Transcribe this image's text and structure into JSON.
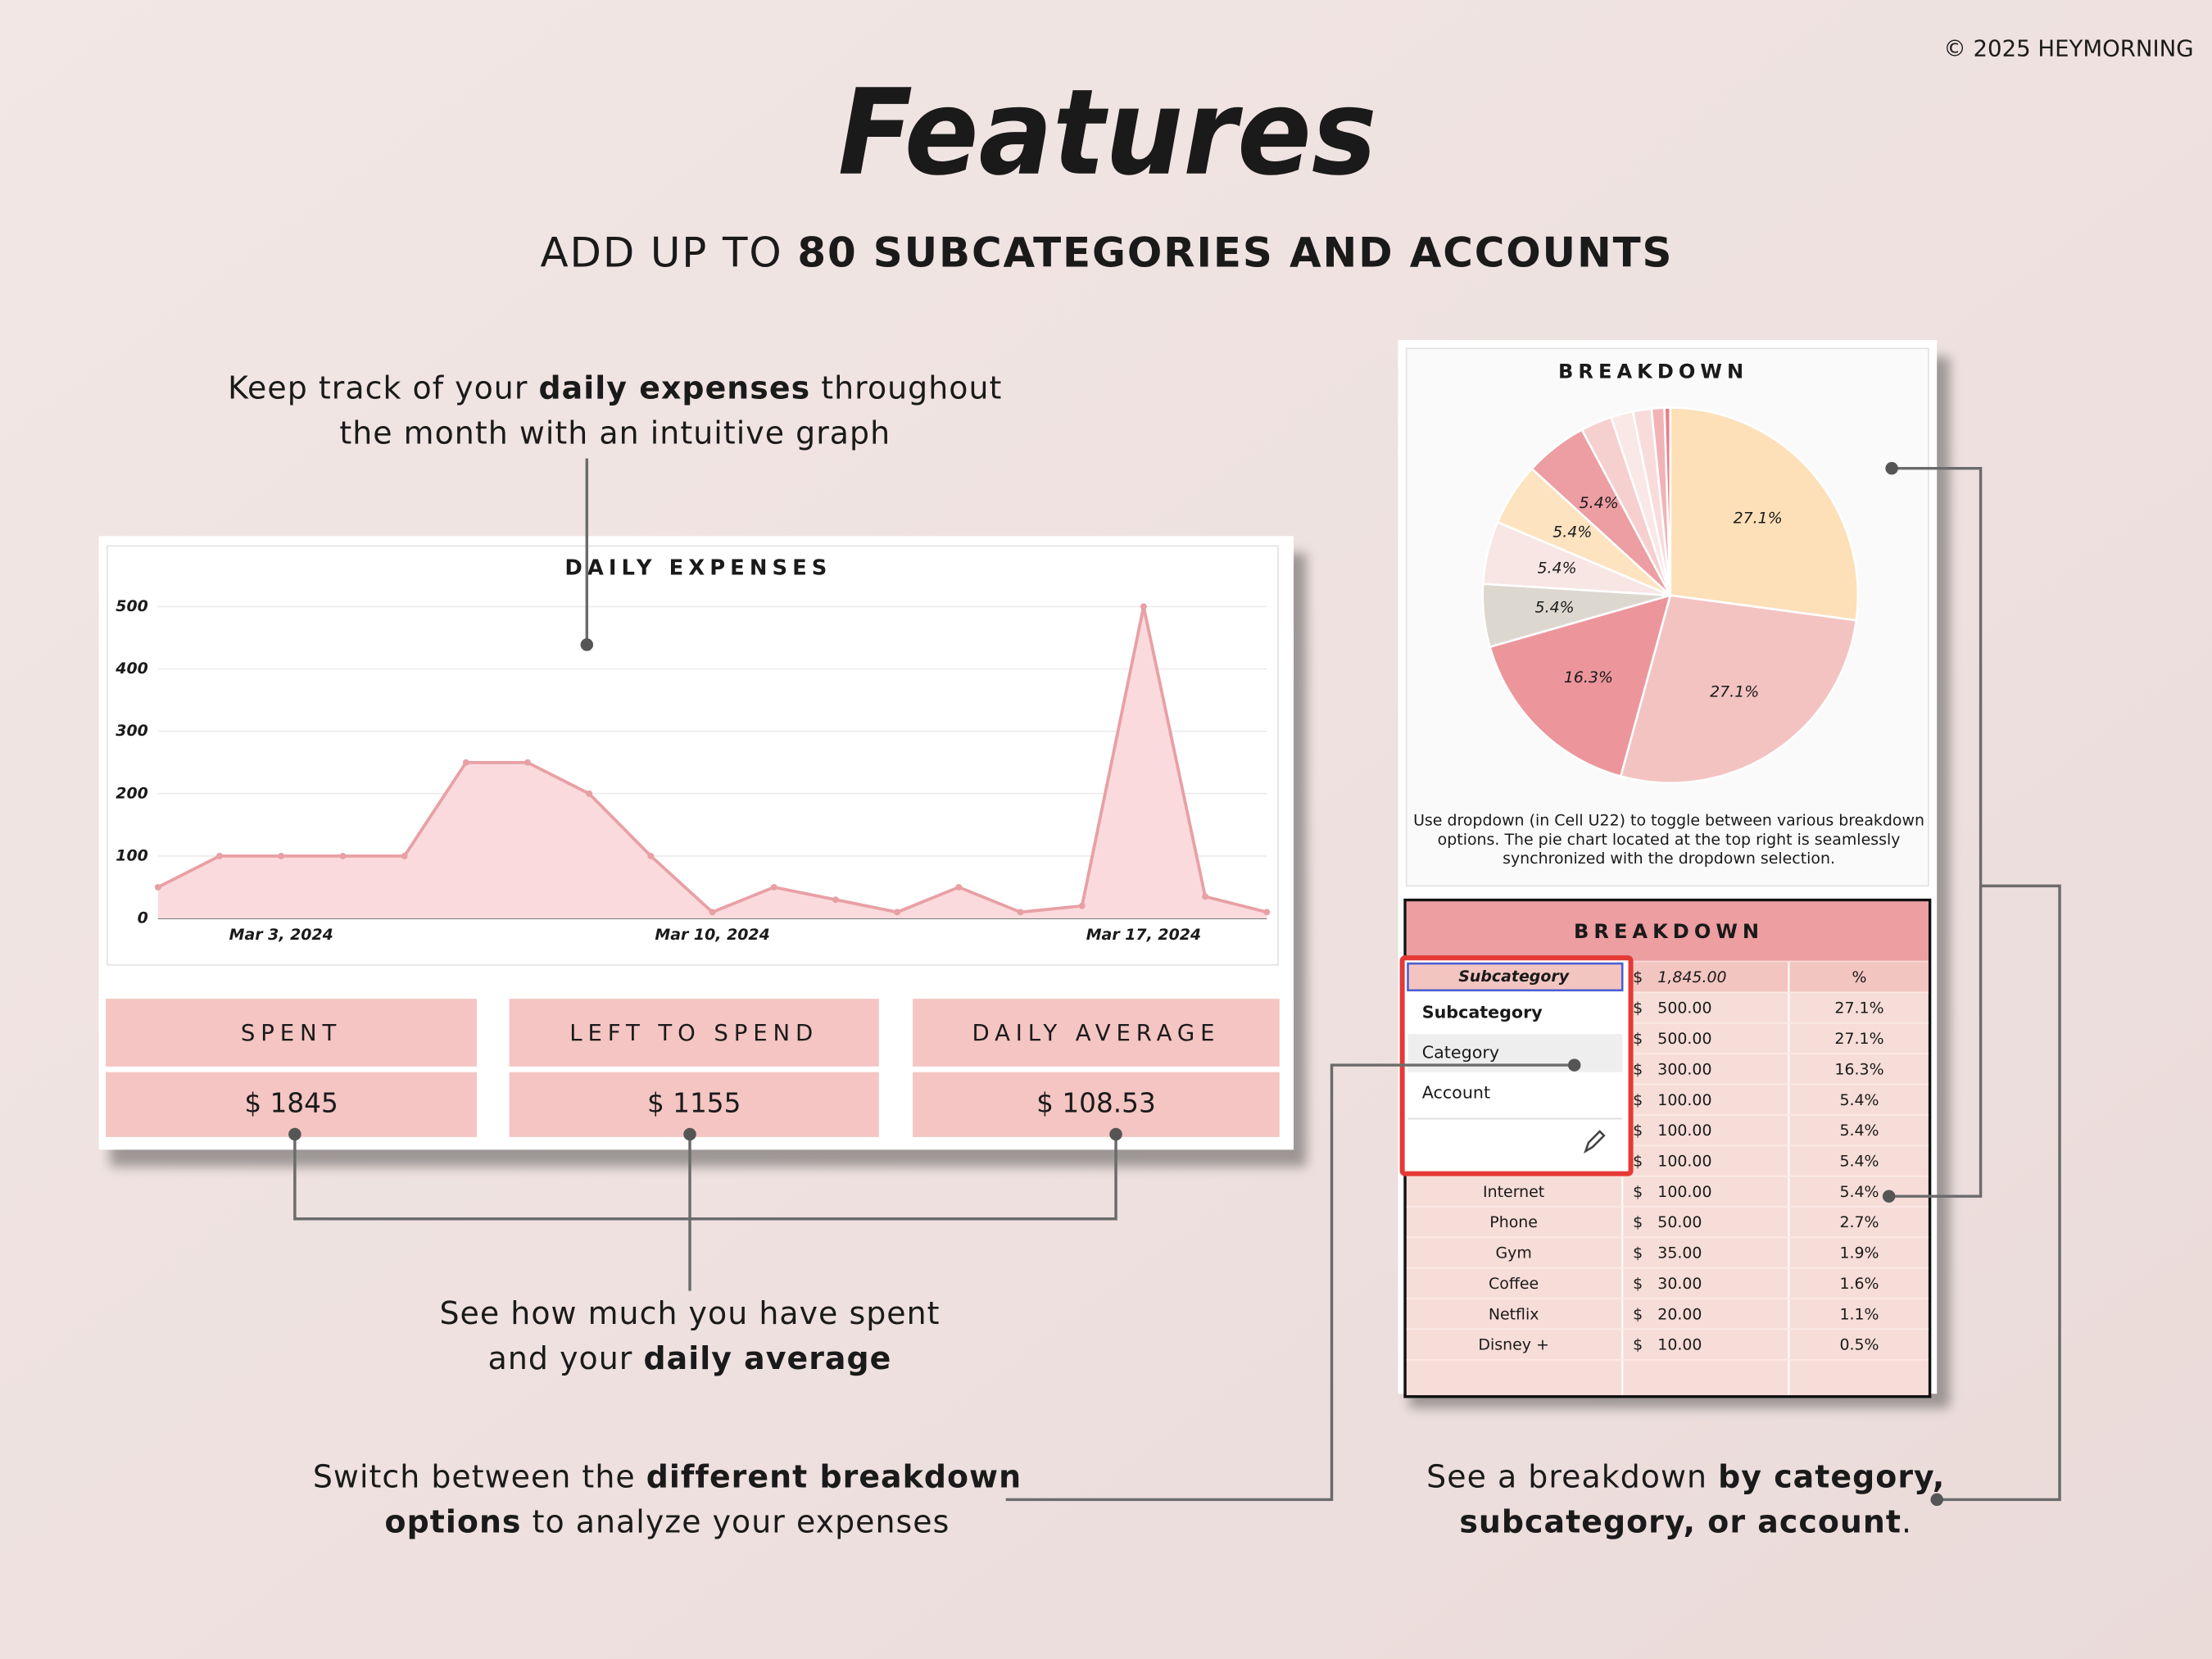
{
  "copyright": "© 2025 HEYMORNING",
  "header": {
    "title": "Features",
    "subtitle": [
      "ADD UP TO ",
      "80 SUBCATEGORIES AND ACCOUNTS"
    ]
  },
  "annotations": [
    {
      "lines": [
        [
          "Keep track of your ",
          "daily expenses",
          " throughout"
        ],
        [
          "the month with an intuitive graph"
        ]
      ]
    },
    {
      "lines": [
        [
          "See how much you have spent"
        ],
        [
          "and your ",
          "daily average"
        ]
      ]
    },
    {
      "lines": [
        [
          "Switch between the ",
          "different breakdown"
        ],
        [
          "options",
          " to analyze your expenses"
        ]
      ]
    },
    {
      "lines": [
        [
          "See a breakdown ",
          "by category,"
        ],
        [
          "subcategory, or account",
          "."
        ]
      ]
    }
  ],
  "chart_data": [
    {
      "type": "line",
      "title": "DAILY EXPENSES",
      "categories": [
        null,
        null,
        "Mar 3, 2024",
        null,
        null,
        null,
        null,
        null,
        null,
        "Mar 10, 2024",
        null,
        null,
        null,
        null,
        null,
        null,
        "Mar 17, 2024",
        null,
        null
      ],
      "values": [
        50,
        100,
        100,
        100,
        100,
        250,
        250,
        200,
        100,
        10,
        50,
        30,
        10,
        50,
        10,
        20,
        500,
        35,
        10
      ],
      "color": "#e8a0a5",
      "fill": "#fadadd",
      "ylim": [
        0,
        500
      ],
      "yticks": [
        0,
        100,
        200,
        300,
        400,
        500
      ],
      "grid": true
    },
    {
      "type": "pie",
      "title": "BREAKDOWN",
      "values": [
        27.1,
        27.1,
        16.3,
        5.4,
        5.4,
        5.4,
        5.4,
        2.7,
        1.9,
        1.6,
        1.1,
        0.5
      ],
      "value_labels": [
        "27.1%",
        "27.1%",
        "16.3%",
        "5.4%",
        "5.4%",
        "5.4%",
        "5.4%",
        null,
        null,
        null,
        null,
        null
      ],
      "colors": [
        "#fde0b8",
        "#f3c3c2",
        "#ec969c",
        "#dcd8cf",
        "#f8e6e4",
        "#fde3c0",
        "#ec9ea3",
        "#f6cfcf",
        "#fae8e6",
        "#f8dcdc",
        "#f2b3b6",
        "#e77f88"
      ]
    }
  ],
  "pie_note": [
    "Use dropdown (in Cell U22) to toggle between various breakdown",
    "options. The pie chart located at the top right is seamlessly",
    "synchronized with the dropdown selection."
  ],
  "summary": [
    {
      "label": "SPENT",
      "value": "$ 1845"
    },
    {
      "label": "LEFT TO SPEND",
      "value": "$ 1155"
    },
    {
      "label": "DAILY AVERAGE",
      "value": "$ 108.53"
    }
  ],
  "breakdown_table": {
    "title": "BREAKDOWN",
    "header": {
      "selected": "Subcategory",
      "currency": "$",
      "total": "1,845.00",
      "pct": "%"
    },
    "dropdown": [
      "Subcategory",
      "Category",
      "Account"
    ],
    "rows": [
      [
        null,
        "$",
        "500.00",
        "27.1%"
      ],
      [
        null,
        "$",
        "500.00",
        "27.1%"
      ],
      [
        null,
        "$",
        "300.00",
        "16.3%"
      ],
      [
        null,
        "$",
        "100.00",
        "5.4%"
      ],
      [
        null,
        "$",
        "100.00",
        "5.4%"
      ],
      [
        null,
        "$",
        "100.00",
        "5.4%"
      ],
      [
        "Internet",
        "$",
        "100.00",
        "5.4%"
      ],
      [
        "Phone",
        "$",
        "50.00",
        "2.7%"
      ],
      [
        "Gym",
        "$",
        "35.00",
        "1.9%"
      ],
      [
        "Coffee",
        "$",
        "30.00",
        "1.6%"
      ],
      [
        "Netflix",
        "$",
        "20.00",
        "1.1%"
      ],
      [
        "Disney +",
        "$",
        "10.00",
        "0.5%"
      ]
    ]
  }
}
